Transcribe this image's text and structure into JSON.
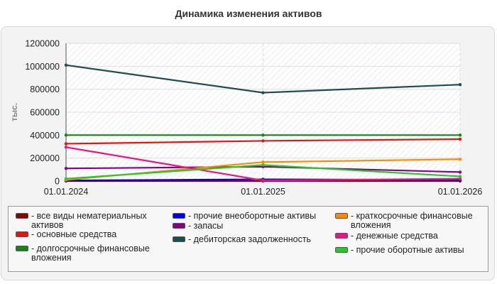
{
  "chart_data": {
    "type": "line",
    "title": "Динамика изменения активов",
    "ylabel": "тыс.",
    "xlabel": "",
    "x": [
      "01.01.2024",
      "01.01.2025",
      "01.01.2026"
    ],
    "ylim": [
      0,
      1200000
    ],
    "yticks": [
      0,
      200000,
      400000,
      600000,
      800000,
      1000000,
      1200000
    ],
    "ytick_labels": [
      "0",
      "200000",
      "400000",
      "600000",
      "800000",
      "1000000",
      "1200000"
    ],
    "grid": true,
    "legend_placement": "bottom",
    "series": [
      {
        "name": "- все виды нематериальных активов",
        "color": "#8b0000",
        "values": [
          0,
          0,
          0
        ]
      },
      {
        "name": "- основные средства",
        "color": "#ee1111",
        "values": [
          325000,
          350000,
          365000
        ]
      },
      {
        "name": "- долгосрочные финансовые вложения",
        "color": "#118811",
        "values": [
          400000,
          400000,
          400000
        ]
      },
      {
        "name": "- прочие внеоборотные активы",
        "color": "#0000ee",
        "values": [
          5000,
          15000,
          10000
        ]
      },
      {
        "name": "- запасы",
        "color": "#880088",
        "values": [
          110000,
          125000,
          78000
        ]
      },
      {
        "name": "- дебиторская задолженность",
        "color": "#1f4d4d",
        "values": [
          1010000,
          770000,
          840000
        ]
      },
      {
        "name": "- краткосрочные финансовые вложения",
        "color": "#ff8800",
        "values": [
          10000,
          165000,
          190000
        ]
      },
      {
        "name": "- денежные средства",
        "color": "#ee1188",
        "values": [
          295000,
          5000,
          20000
        ]
      },
      {
        "name": "- прочие оборотные активы",
        "color": "#22cc22",
        "values": [
          20000,
          140000,
          40000
        ]
      }
    ]
  }
}
